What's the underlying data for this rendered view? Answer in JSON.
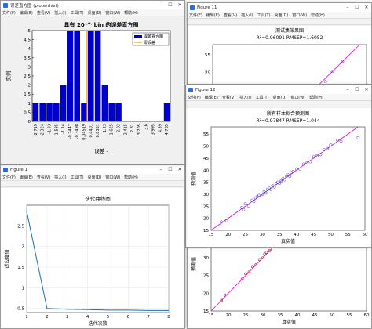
{
  "menu": [
    "文件(F)",
    "编辑(E)",
    "查看(V)",
    "插入(I)",
    "工具(T)",
    "桌面(D)",
    "窗口(W)",
    "帮助(H)"
  ],
  "hist_window": {
    "title": "误差直方图 (ploterrhist)",
    "menu_short": [
      "文件(F)",
      "编辑(E)",
      "查看(V)",
      "插入(I)",
      "工具(T)",
      "桌面(D)",
      "窗口(W)",
      "帮助(H)"
    ],
    "chart_data": {
      "type": "bar",
      "title": "具有 20 个 bin 的误差直方图",
      "xlabel": "误差 -",
      "ylabel": "实例",
      "ylim": [
        0,
        5
      ],
      "yticks": [
        0,
        0.5,
        1,
        1.5,
        2,
        2.5,
        3,
        3.5,
        4,
        4.5,
        5
      ],
      "categories": [
        "-2.719",
        "-2.324",
        "-1.93",
        "-1.535",
        "-1.14",
        "-0.7447",
        "-0.3498",
        "0.04519",
        "0.4401",
        "0.8351",
        "1.23",
        "1.625",
        "2.02",
        "2.415",
        "2.81",
        "3.205",
        "3.6",
        "3.995",
        "4.39",
        "4.785"
      ],
      "values": [
        1,
        1,
        1,
        1,
        2,
        5,
        5,
        1,
        5,
        5,
        2,
        1,
        1,
        0,
        0,
        0,
        0,
        0,
        0,
        1
      ],
      "zero_error_index": 7,
      "legend": [
        "误差直方图",
        "零误差"
      ],
      "colors": {
        "bar": "#0000cc",
        "zero": "#e89000"
      }
    }
  },
  "fig1": {
    "title": "Figure 1",
    "chart_data": {
      "type": "line",
      "title": "迭代曲线图",
      "xlabel": "迭代次数",
      "ylabel": "适应度值",
      "xlim": [
        1,
        8
      ],
      "ylim": [
        0.4,
        3
      ],
      "xticks": [
        1,
        2,
        3,
        4,
        5,
        6,
        7,
        8
      ],
      "yticks": [
        0.5,
        1,
        1.5,
        2,
        2.5
      ],
      "x": [
        1,
        2,
        3,
        4,
        5,
        6,
        7,
        8
      ],
      "values": [
        2.85,
        0.5,
        0.48,
        0.47,
        0.46,
        0.46,
        0.45,
        0.45
      ],
      "color": "#1a6faf"
    }
  },
  "fig11": {
    "title": "Figure 11",
    "chart_data": {
      "type": "scatter",
      "title": "测试集效果图",
      "subtitle": "R²=0.96091  RMSEP=1.6052",
      "yticks": [
        50,
        55
      ],
      "xlim": [
        15,
        60
      ],
      "ylim": [
        15,
        58
      ],
      "points": [
        [
          45,
          44
        ],
        [
          46,
          45.5
        ],
        [
          48,
          47
        ],
        [
          50,
          50
        ],
        [
          53,
          53
        ]
      ]
    }
  },
  "fig12": {
    "title": "Figure 12",
    "chart_data": {
      "type": "scatter",
      "title": "所有样本拟合预测图",
      "subtitle": "R²=0.97847  RMSEP=1.044",
      "xlabel": "真实值",
      "ylabel": "预测值",
      "xlim": [
        15,
        60
      ],
      "ylim": [
        15,
        58
      ],
      "xticks": [
        15,
        20,
        25,
        30,
        35,
        40,
        45,
        50,
        55,
        60
      ],
      "yticks": [
        15,
        20,
        25,
        30,
        35,
        40,
        45,
        50,
        55
      ],
      "points": [
        [
          18,
          18.5
        ],
        [
          19.5,
          19
        ],
        [
          24,
          24.5
        ],
        [
          24.5,
          23.5
        ],
        [
          25,
          26
        ],
        [
          26,
          25
        ],
        [
          27,
          27.5
        ],
        [
          27.5,
          27
        ],
        [
          28,
          28.5
        ],
        [
          28.5,
          29
        ],
        [
          29,
          29.5
        ],
        [
          30,
          30
        ],
        [
          30.5,
          31
        ],
        [
          31,
          30.5
        ],
        [
          31.5,
          32
        ],
        [
          32,
          32.5
        ],
        [
          32.5,
          32
        ],
        [
          33,
          33.5
        ],
        [
          33.5,
          33
        ],
        [
          34,
          34.5
        ],
        [
          34.5,
          35
        ],
        [
          35,
          34.5
        ],
        [
          35.5,
          35.5
        ],
        [
          36,
          36.5
        ],
        [
          36.5,
          36
        ],
        [
          37,
          37.5
        ],
        [
          37.5,
          38
        ],
        [
          38,
          37.5
        ],
        [
          38.5,
          39
        ],
        [
          39,
          39.5
        ],
        [
          40,
          40.5
        ],
        [
          41,
          40.5
        ],
        [
          42,
          42.5
        ],
        [
          43,
          43
        ],
        [
          44,
          43.5
        ],
        [
          45,
          45.5
        ],
        [
          46,
          46
        ],
        [
          47,
          46.5
        ],
        [
          48,
          48.5
        ],
        [
          49,
          49
        ],
        [
          50,
          50.5
        ],
        [
          52,
          52.5
        ],
        [
          53,
          52
        ],
        [
          58,
          53.5
        ]
      ]
    }
  },
  "back_figure": {
    "xlabel": "真实值",
    "ylabel": "预测值",
    "xticks": [
      15,
      20,
      25,
      30,
      35,
      40,
      45,
      50,
      55,
      60
    ],
    "yticks": [
      15,
      20,
      25,
      30
    ],
    "points": [
      [
        18,
        18
      ],
      [
        19,
        19.5
      ],
      [
        24,
        24
      ],
      [
        25,
        25.5
      ],
      [
        26,
        26
      ],
      [
        27,
        27.5
      ],
      [
        28,
        28
      ],
      [
        29,
        29.5
      ],
      [
        30,
        30
      ],
      [
        30.5,
        31
      ],
      [
        31,
        31.5
      ],
      [
        32,
        32
      ],
      [
        33,
        33.5
      ],
      [
        34,
        34
      ],
      [
        35,
        35.5
      ],
      [
        36,
        36
      ],
      [
        37,
        37
      ],
      [
        38,
        38.5
      ],
      [
        39,
        39
      ],
      [
        40,
        40.5
      ],
      [
        42,
        42
      ],
      [
        45,
        45
      ]
    ]
  }
}
